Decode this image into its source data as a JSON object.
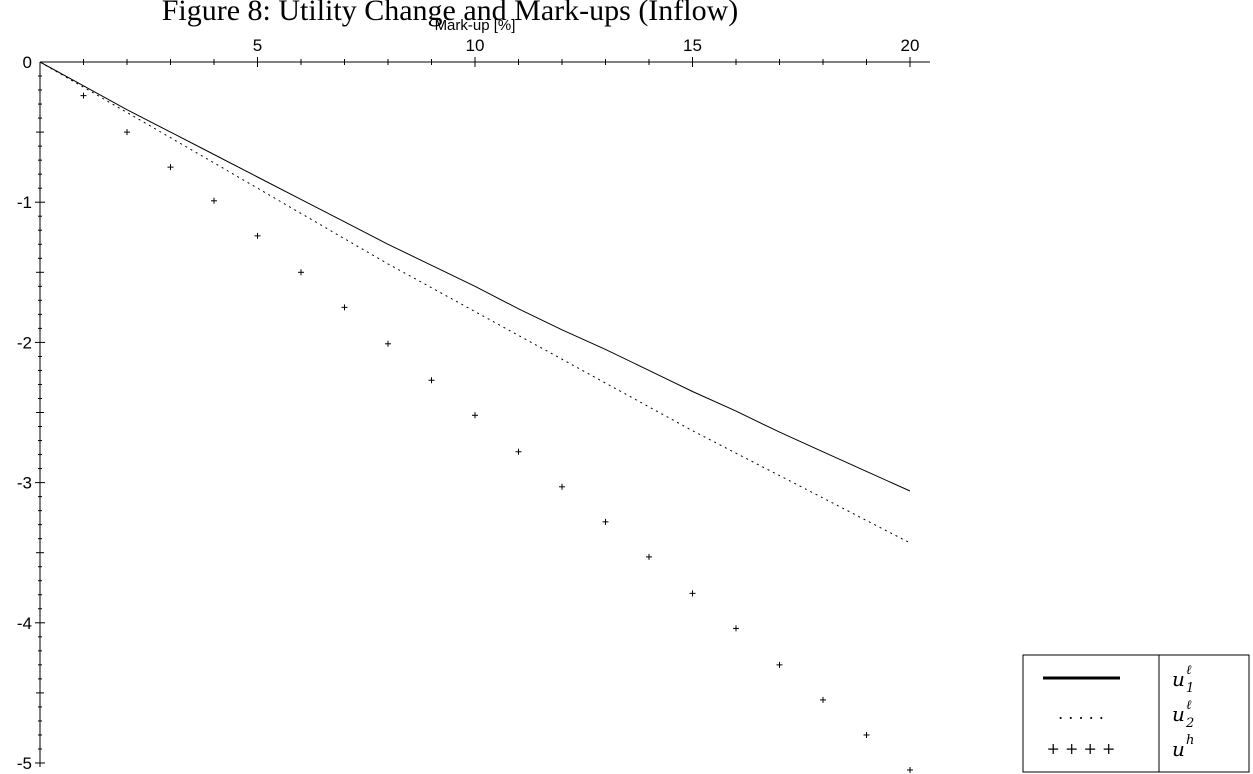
{
  "chart_data": {
    "type": "line",
    "title": "Figure 8: Utility Change and Mark-ups (Inflow)",
    "xlabel": "Mark-up [%]",
    "ylabel": "",
    "xlim": [
      0,
      20
    ],
    "ylim": [
      -5,
      0
    ],
    "x_ticks": [
      5,
      10,
      15,
      20
    ],
    "y_ticks": [
      0,
      -1,
      -2,
      -3,
      -4,
      -5
    ],
    "grid": false,
    "legend_position": "bottom-right",
    "series": [
      {
        "name": "u1^ℓ",
        "label_base": "u",
        "label_sup": "ℓ",
        "label_sub": "1",
        "legend_symbol": "",
        "style": "solid",
        "x": [
          0,
          1,
          2,
          3,
          4,
          5,
          6,
          7,
          8,
          9,
          10,
          11,
          12,
          13,
          14,
          15,
          16,
          17,
          18,
          19,
          20
        ],
        "y": [
          0,
          -0.17,
          -0.34,
          -0.5,
          -0.66,
          -0.82,
          -0.98,
          -1.14,
          -1.3,
          -1.45,
          -1.6,
          -1.76,
          -1.91,
          -2.05,
          -2.2,
          -2.35,
          -2.49,
          -2.64,
          -2.78,
          -2.92,
          -3.06
        ]
      },
      {
        "name": "u2^ℓ",
        "label_base": "u",
        "label_sup": "ℓ",
        "label_sub": "2",
        "legend_symbol": ". . . . .",
        "style": "dotted",
        "x": [
          0,
          1,
          2,
          3,
          4,
          5,
          6,
          7,
          8,
          9,
          10,
          11,
          12,
          13,
          14,
          15,
          16,
          17,
          18,
          19,
          20
        ],
        "y": [
          0,
          -0.18,
          -0.36,
          -0.54,
          -0.72,
          -0.9,
          -1.08,
          -1.26,
          -1.44,
          -1.61,
          -1.78,
          -1.95,
          -2.12,
          -2.29,
          -2.46,
          -2.63,
          -2.79,
          -2.95,
          -3.11,
          -3.27,
          -3.43
        ]
      },
      {
        "name": "u^h",
        "label_base": "u",
        "label_sup": "h",
        "label_sub": "",
        "legend_symbol": "+ + + +",
        "style": "plus",
        "x": [
          1,
          2,
          3,
          4,
          5,
          6,
          7,
          8,
          9,
          10,
          11,
          12,
          13,
          14,
          15,
          16,
          17,
          18,
          19,
          20
        ],
        "y": [
          -0.24,
          -0.5,
          -0.75,
          -0.99,
          -1.24,
          -1.5,
          -1.75,
          -2.01,
          -2.27,
          -2.52,
          -2.78,
          -3.03,
          -3.28,
          -3.53,
          -3.79,
          -4.04,
          -4.3,
          -4.55,
          -4.8,
          -5.05
        ]
      }
    ]
  }
}
